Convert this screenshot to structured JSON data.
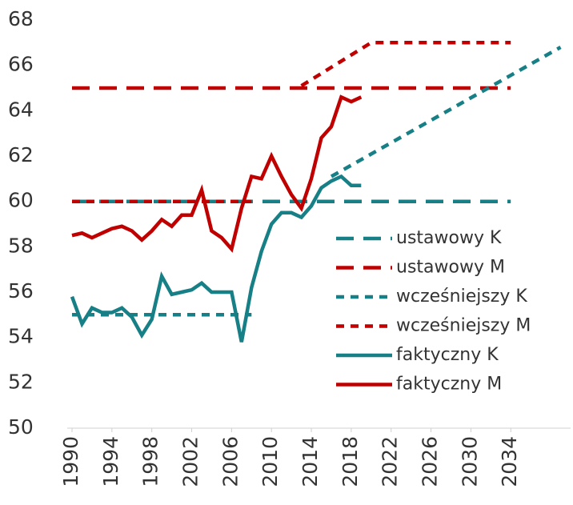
{
  "chart_data": {
    "type": "line",
    "xlim": [
      1990,
      2040
    ],
    "xticks": [
      1990,
      1994,
      1998,
      2002,
      2006,
      2010,
      2014,
      2018,
      2022,
      2026,
      2030,
      2034
    ],
    "ylim": [
      50,
      68
    ],
    "yticks": [
      50,
      52,
      54,
      56,
      58,
      60,
      62,
      64,
      66,
      68
    ],
    "grid": false,
    "legend": "right",
    "series": [
      {
        "name": "ustawowy K",
        "color": "#177f86",
        "dash": "long",
        "x": [
          1990,
          2034
        ],
        "values": [
          60,
          60
        ]
      },
      {
        "name": "ustawowy M",
        "color": "#c00000",
        "dash": "long",
        "x": [
          1990,
          2034
        ],
        "values": [
          65,
          65
        ]
      },
      {
        "name": "wcześniejszy K",
        "color": "#177f86",
        "dash": "short",
        "x": [
          1990,
          2008,
          2012,
          2016,
          2039
        ],
        "values": [
          55,
          55,
          null,
          61.1,
          66.8
        ]
      },
      {
        "name": "wcześniejszy M",
        "color": "#c00000",
        "dash": "short",
        "x": [
          1990,
          2008,
          2012,
          2013,
          2020,
          2034
        ],
        "values": [
          60,
          60,
          null,
          65.1,
          67,
          67
        ]
      },
      {
        "name": "faktyczny K",
        "color": "#177f86",
        "dash": "solid",
        "x": [
          1990,
          1991,
          1992,
          1993,
          1994,
          1995,
          1996,
          1997,
          1998,
          1999,
          2000,
          2001,
          2002,
          2003,
          2004,
          2005,
          2006,
          2007,
          2008,
          2009,
          2010,
          2011,
          2012,
          2013,
          2014,
          2015,
          2016,
          2017,
          2018,
          2019
        ],
        "values": [
          55.8,
          54.6,
          55.3,
          55.1,
          55.1,
          55.3,
          54.9,
          54.1,
          54.8,
          56.7,
          55.9,
          56.0,
          56.1,
          56.4,
          56.0,
          56.0,
          56.0,
          53.8,
          56.2,
          57.8,
          59.0,
          59.5,
          59.5,
          59.3,
          59.8,
          60.6,
          60.9,
          61.1,
          60.7,
          60.7
        ]
      },
      {
        "name": "faktyczny M",
        "color": "#c00000",
        "dash": "solid",
        "x": [
          1990,
          1991,
          1992,
          1993,
          1994,
          1995,
          1996,
          1997,
          1998,
          1999,
          2000,
          2001,
          2002,
          2003,
          2004,
          2005,
          2006,
          2007,
          2008,
          2009,
          2010,
          2011,
          2012,
          2013,
          2014,
          2015,
          2016,
          2017,
          2018,
          2019
        ],
        "values": [
          58.5,
          58.6,
          58.4,
          58.6,
          58.8,
          58.9,
          58.7,
          58.3,
          58.7,
          59.2,
          58.9,
          59.4,
          59.4,
          60.5,
          58.7,
          58.4,
          57.9,
          59.7,
          61.1,
          61.0,
          62.0,
          61.1,
          60.3,
          59.7,
          61.0,
          62.8,
          63.3,
          64.6,
          64.4,
          64.6
        ]
      }
    ]
  }
}
